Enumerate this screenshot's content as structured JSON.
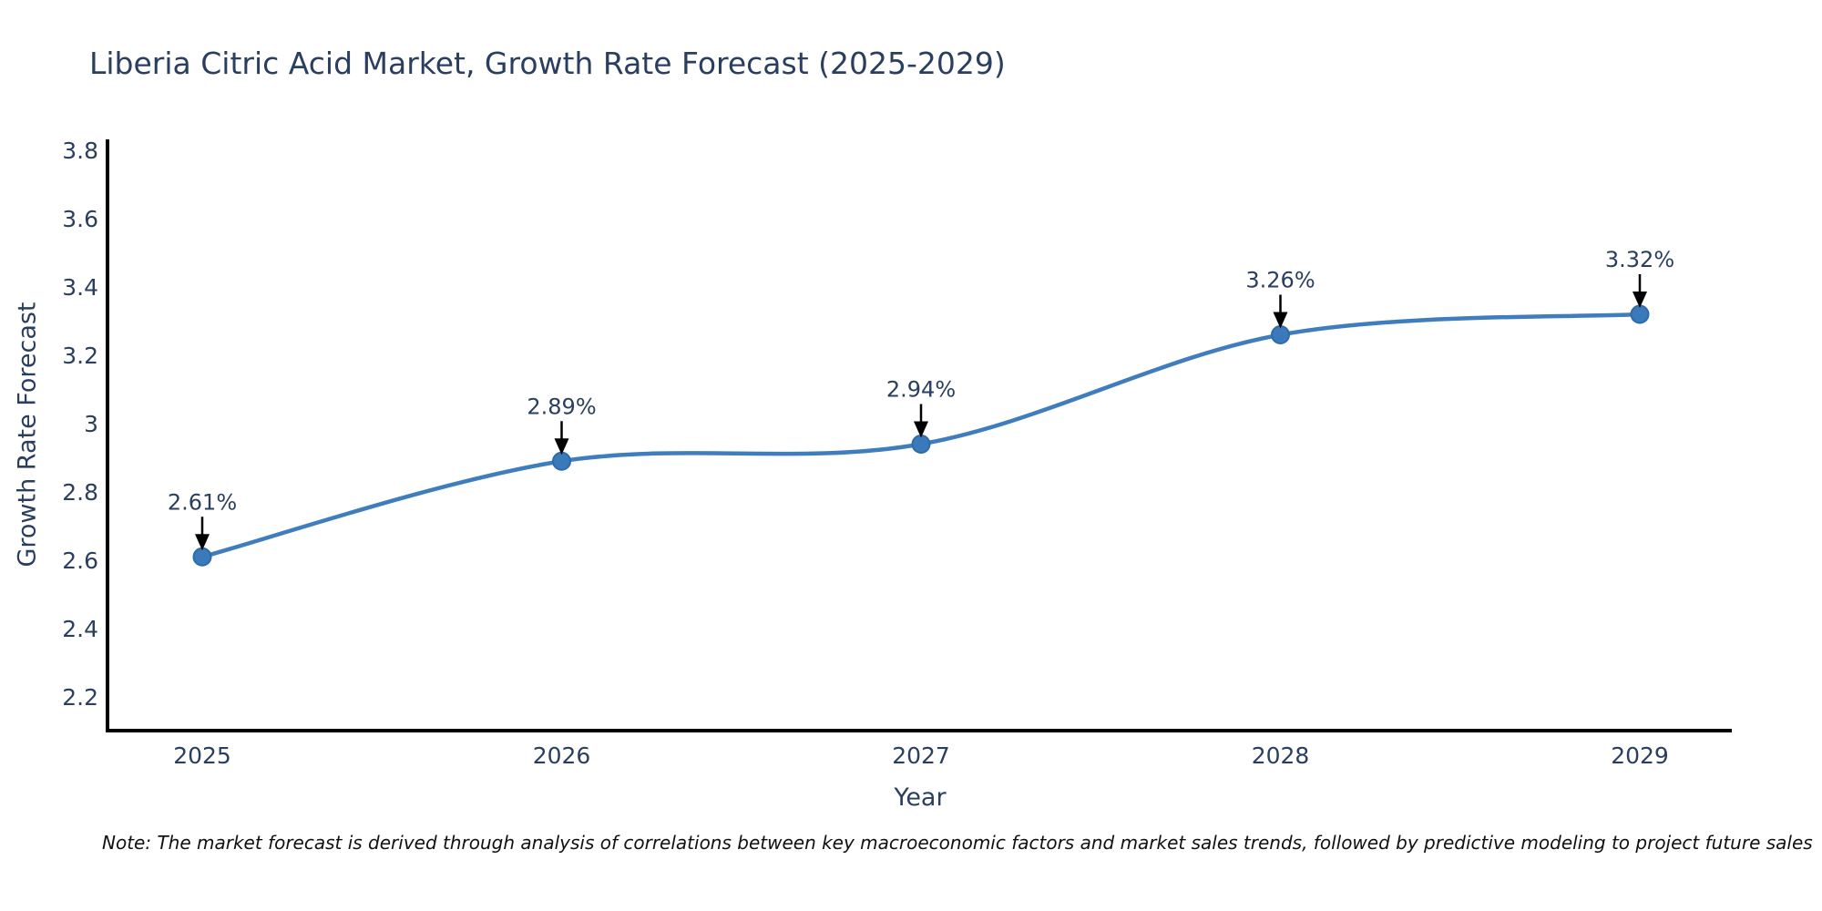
{
  "title": "Liberia Citric Acid Market, Growth Rate Forecast (2025-2029)",
  "note": "Note: The market forecast is derived through analysis of correlations between key macroeconomic factors and market sales trends, followed by predictive modeling to project future sales",
  "chart_data": {
    "type": "line",
    "title": "Liberia Citric Acid Market, Growth Rate Forecast (2025-2029)",
    "xlabel": "Year",
    "ylabel": "Growth Rate Forecast",
    "x": [
      2025,
      2026,
      2027,
      2028,
      2029
    ],
    "values": [
      2.61,
      2.89,
      2.94,
      3.26,
      3.32
    ],
    "point_labels": [
      "2.61%",
      "2.89%",
      "2.94%",
      "3.26%",
      "3.32%"
    ],
    "xticks": [
      "2025",
      "2026",
      "2027",
      "2028",
      "2029"
    ],
    "yticks": [
      "3.8",
      "3.6",
      "3.4",
      "3.2",
      "3",
      "2.8",
      "2.6",
      "2.4",
      "2.2"
    ],
    "ytick_values": [
      3.8,
      3.6,
      3.4,
      3.2,
      3.0,
      2.8,
      2.6,
      2.4,
      2.2
    ],
    "ylim": [
      2.1,
      3.83
    ],
    "grid": false,
    "legend": "none",
    "line_shape": "spline",
    "annotation_style": "label-above-with-down-arrow",
    "colors": {
      "line": "#3f7dbc",
      "marker": "#3a7abb",
      "marker_edge": "#2e6ba8",
      "axis": "#000000",
      "text": "#2a3f5f",
      "arrow": "#000000",
      "note_text": "#111111"
    }
  }
}
